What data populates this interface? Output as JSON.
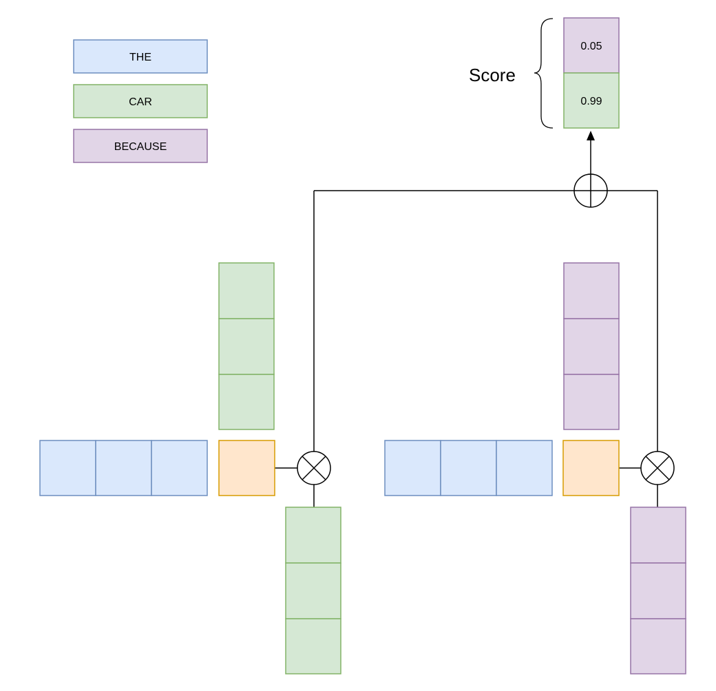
{
  "legend": [
    {
      "label": "THE",
      "color": "blue"
    },
    {
      "label": "CAR",
      "color": "green"
    },
    {
      "label": "BECAUSE",
      "color": "purple"
    }
  ],
  "score": {
    "label": "Score",
    "values": [
      {
        "text": "0.05",
        "color": "purple"
      },
      {
        "text": "0.99",
        "color": "green"
      }
    ]
  },
  "operators": {
    "multiply": "⊗",
    "add": "⊕"
  },
  "colors": {
    "blue": {
      "fill": "#dae8fc",
      "stroke": "#6c8ebf"
    },
    "green": {
      "fill": "#d5e8d4",
      "stroke": "#82b366"
    },
    "purple": {
      "fill": "#e1d5e7",
      "stroke": "#9673a6"
    },
    "orange": {
      "fill": "#ffe6cc",
      "stroke": "#d79b00"
    },
    "line": "#000000"
  }
}
